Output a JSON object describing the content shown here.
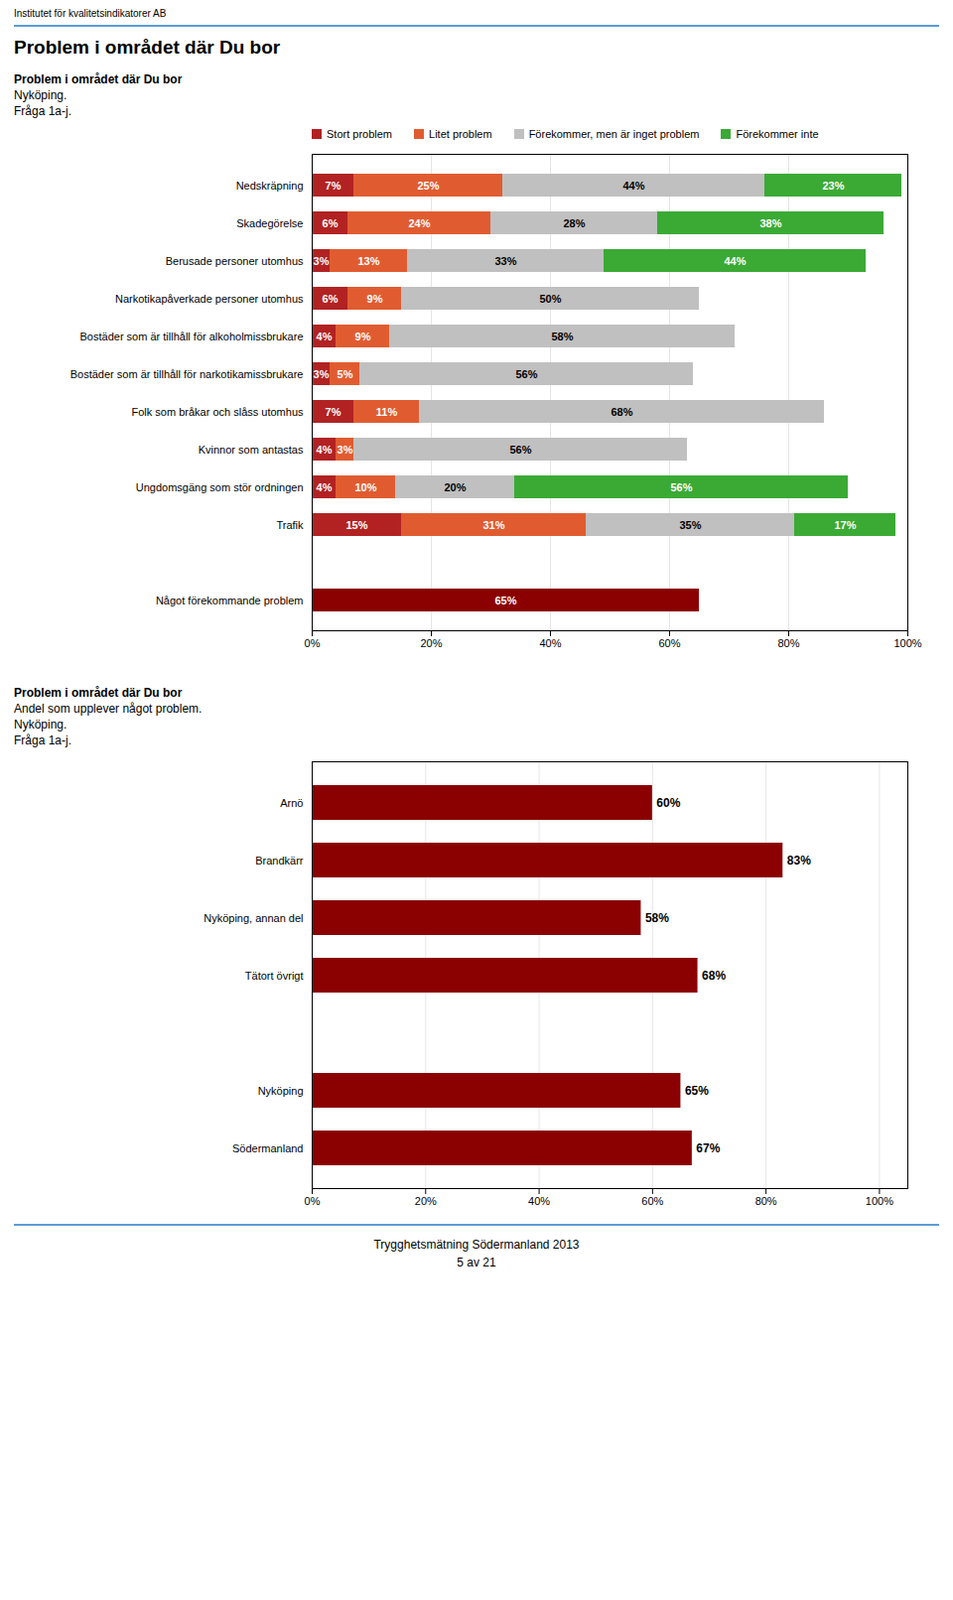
{
  "header": "Institutet för kvalitetsindikatorer AB",
  "title": "Problem i området där Du bor",
  "footer": [
    "Trygghetsmätning Södermanland 2013",
    "5 av 21"
  ],
  "chart_data": [
    {
      "type": "bar",
      "title": "Problem i området där Du bor",
      "subtitle": [
        "Nyköping.",
        "Fråga 1a-j."
      ],
      "orientation": "horizontal",
      "stacked": true,
      "data_labels": true,
      "grid": true,
      "categories": [
        "Nedskräpning",
        "Skadegörelse",
        "Berusade personer utomhus",
        "Narkotikapåverkade personer utomhus",
        "Bostäder som är tillhåll för alkoholmissbrukare",
        "Bostäder som är tillhåll för narkotikamissbrukare",
        "Folk som bråkar och slåss utomhus",
        "Kvinnor som antastas",
        "Ungdomsgäng som stör ordningen",
        "Trafik",
        null,
        "Något förekommande problem"
      ],
      "series": [
        {
          "name": "Stort problem",
          "color": "#b22222",
          "values": [
            7,
            6,
            3,
            6,
            4,
            3,
            7,
            4,
            4,
            15,
            0,
            null
          ],
          "value_labels": [
            "7%",
            "6%",
            "3%",
            "6%",
            "4%",
            "3%",
            "7%",
            "4%",
            "4%",
            "15%",
            null,
            null
          ]
        },
        {
          "name": "Litet problem",
          "color": "#e05c30",
          "values": [
            25,
            24,
            13,
            9,
            9,
            5,
            11,
            3,
            10,
            31,
            0,
            null
          ],
          "value_labels": [
            "25%",
            "24%",
            "13%",
            "9%",
            "9%",
            "5%",
            "11%",
            "3%",
            "10%",
            "31%",
            null,
            null
          ]
        },
        {
          "name": "Förekommer, men är inget problem",
          "color": "#c0c0c0",
          "values": [
            44,
            28,
            33,
            50,
            58,
            56,
            68,
            56,
            20,
            35,
            0,
            null
          ],
          "value_labels": [
            "44%",
            "28%",
            "33%",
            "50%",
            "58%",
            "56%",
            "68%",
            "56%",
            "20%",
            "35%",
            null,
            null
          ]
        },
        {
          "name": "Förekommer inte",
          "color": "#3aaa35",
          "values": [
            23,
            38,
            44,
            0,
            0,
            0,
            0,
            0,
            56,
            17,
            0,
            null
          ],
          "value_labels": [
            "23%",
            "38%",
            "44%",
            null,
            null,
            null,
            null,
            null,
            "56%",
            "17%",
            null,
            null
          ]
        },
        {
          "color": "#8b0000",
          "values": [
            null,
            null,
            null,
            null,
            null,
            null,
            null,
            null,
            null,
            null,
            null,
            65
          ],
          "value_labels": [
            null,
            null,
            null,
            null,
            null,
            null,
            null,
            null,
            null,
            null,
            null,
            "65%"
          ]
        }
      ],
      "xlim": [
        0,
        100
      ],
      "xticks": [
        {
          "value": 0,
          "label": "0%"
        },
        {
          "value": 20,
          "label": "20%"
        },
        {
          "value": 40,
          "label": "40%"
        },
        {
          "value": 60,
          "label": "60%"
        },
        {
          "value": 80,
          "label": "80%"
        },
        {
          "value": 100,
          "label": "100%"
        }
      ]
    },
    {
      "type": "bar",
      "title": "Problem i området där Du bor",
      "subtitle": [
        "Andel som upplever något problem.",
        "Nyköping.",
        "Fråga 1a-j."
      ],
      "orientation": "horizontal",
      "data_labels": true,
      "grid": true,
      "categories": [
        "Arnö",
        "Brandkärr",
        "Nyköping, annan del",
        "Tätort övrigt",
        null,
        "Nyköping",
        "Södermanland"
      ],
      "values": [
        60,
        83,
        58,
        68,
        0,
        65,
        67
      ],
      "value_labels": [
        "60%",
        "83%",
        "58%",
        "68%",
        null,
        "65%",
        "67%"
      ],
      "color": "#8b0000",
      "xlim": [
        0,
        105
      ],
      "xticks": [
        {
          "value": 0,
          "label": "0%"
        },
        {
          "value": 20,
          "label": "20%"
        },
        {
          "value": 40,
          "label": "40%"
        },
        {
          "value": 60,
          "label": "60%"
        },
        {
          "value": 80,
          "label": "80%"
        },
        {
          "value": 100,
          "label": "100%"
        }
      ]
    }
  ]
}
